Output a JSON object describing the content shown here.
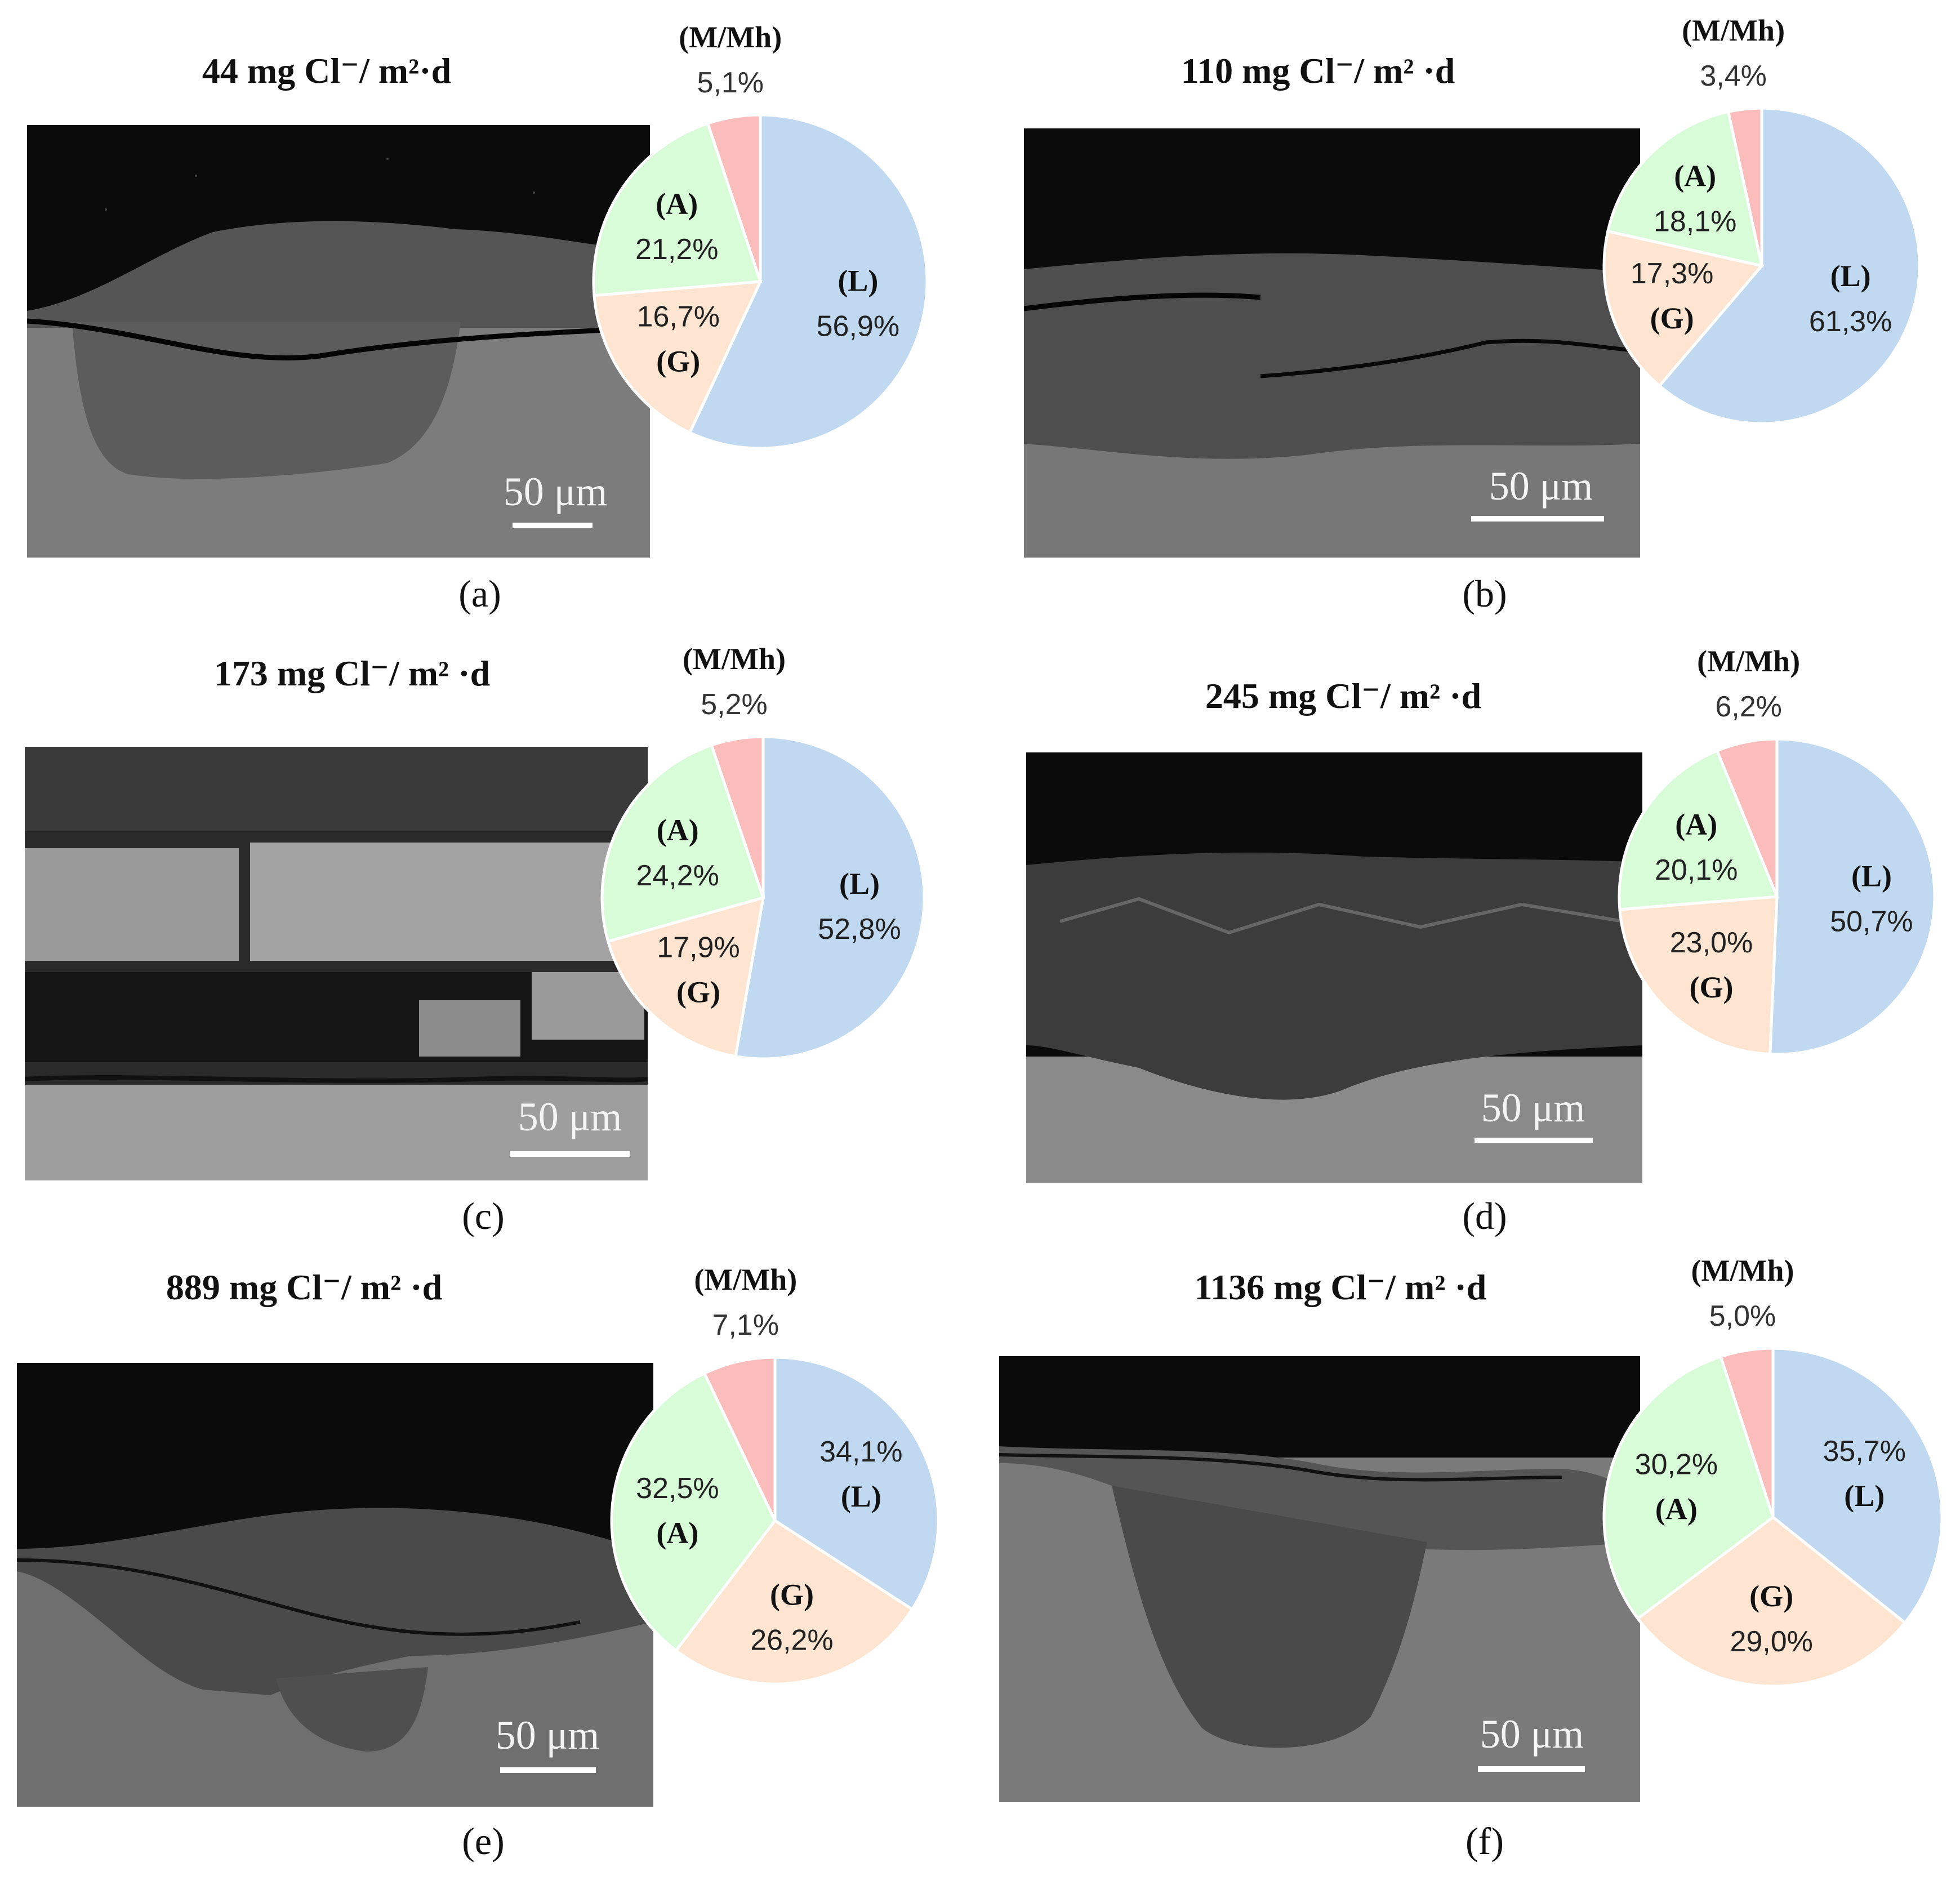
{
  "colors": {
    "L": "#c0d8f0",
    "G": "#fde5d1",
    "A": "#d8fbd8",
    "M": "#fbbcbc",
    "pie_stroke": "#ffffff"
  },
  "panels": [
    {
      "id": "a",
      "letter": "(a)",
      "title": "44 mg Cl⁻/ m²·d",
      "scale_label": "50 μm"
    },
    {
      "id": "b",
      "letter": "(b)",
      "title": "110 mg Cl⁻/ m² ·d",
      "scale_label": "50 μm"
    },
    {
      "id": "c",
      "letter": "(c)",
      "title": "173 mg Cl⁻/ m² ·d",
      "scale_label": "50 μm"
    },
    {
      "id": "d",
      "letter": "(d)",
      "title": "245 mg Cl⁻/ m² ·d",
      "scale_label": "50 μm"
    },
    {
      "id": "e",
      "letter": "(e)",
      "title": "889 mg Cl⁻/ m² ·d",
      "scale_label": "50 μm"
    },
    {
      "id": "f",
      "letter": "(f)",
      "title": "1136 mg Cl⁻/ m² ·d",
      "scale_label": "50 μm"
    }
  ],
  "chart_data": [
    {
      "type": "pie",
      "panel": "a",
      "categories": [
        "(L)",
        "(G)",
        "(A)",
        "(M/Mh)"
      ],
      "values": [
        56.9,
        16.7,
        21.2,
        5.1
      ],
      "labels": [
        "56,9%",
        "16,7%",
        "21,2%",
        "5,1%"
      ]
    },
    {
      "type": "pie",
      "panel": "b",
      "categories": [
        "(L)",
        "(G)",
        "(A)",
        "(M/Mh)"
      ],
      "values": [
        61.3,
        17.3,
        18.1,
        3.4
      ],
      "labels": [
        "61,3%",
        "17,3%",
        "18,1%",
        "3,4%"
      ]
    },
    {
      "type": "pie",
      "panel": "c",
      "categories": [
        "(L)",
        "(G)",
        "(A)",
        "(M/Mh)"
      ],
      "values": [
        52.8,
        17.9,
        24.2,
        5.2
      ],
      "labels": [
        "52,8%",
        "17,9%",
        "24,2%",
        "5,2%"
      ]
    },
    {
      "type": "pie",
      "panel": "d",
      "categories": [
        "(L)",
        "(G)",
        "(A)",
        "(M/Mh)"
      ],
      "values": [
        50.7,
        23.0,
        20.1,
        6.2
      ],
      "labels": [
        "50,7%",
        "23,0%",
        "20,1%",
        "6,2%"
      ]
    },
    {
      "type": "pie",
      "panel": "e",
      "categories": [
        "(L)",
        "(G)",
        "(A)",
        "(M/Mh)"
      ],
      "values": [
        34.1,
        26.2,
        32.5,
        7.1
      ],
      "labels": [
        "34,1%",
        "26,2%",
        "32,5%",
        "7,1%"
      ]
    },
    {
      "type": "pie",
      "panel": "f",
      "categories": [
        "(L)",
        "(G)",
        "(A)",
        "(M/Mh)"
      ],
      "values": [
        35.7,
        29.0,
        30.2,
        5.0
      ],
      "labels": [
        "35,7%",
        "29,0%",
        "30,2%",
        "5,0%"
      ]
    }
  ]
}
